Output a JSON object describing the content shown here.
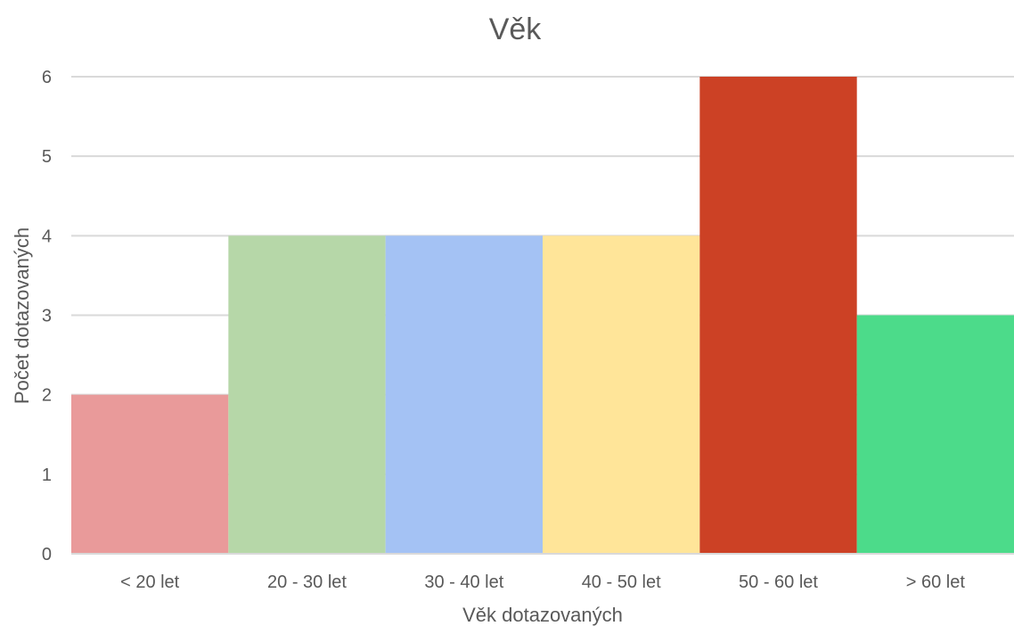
{
  "chart_data": {
    "type": "bar",
    "title": "Věk",
    "xlabel": "Věk dotazovaných",
    "ylabel": "Počet dotazovaných",
    "categories": [
      "< 20 let",
      "20 - 30 let",
      "30 - 40 let",
      "40 - 50 let",
      "50 - 60 let",
      "> 60 let"
    ],
    "values": [
      2,
      4,
      4,
      4,
      6,
      3
    ],
    "colors": [
      "#e99a9a",
      "#b6d7a8",
      "#a4c2f4",
      "#ffe599",
      "#cc4125",
      "#4cdb8a"
    ],
    "ylim": [
      0,
      6
    ],
    "yticks": [
      "0",
      "1",
      "2",
      "3",
      "4",
      "5",
      "6"
    ],
    "grid": true,
    "legend": "none"
  }
}
